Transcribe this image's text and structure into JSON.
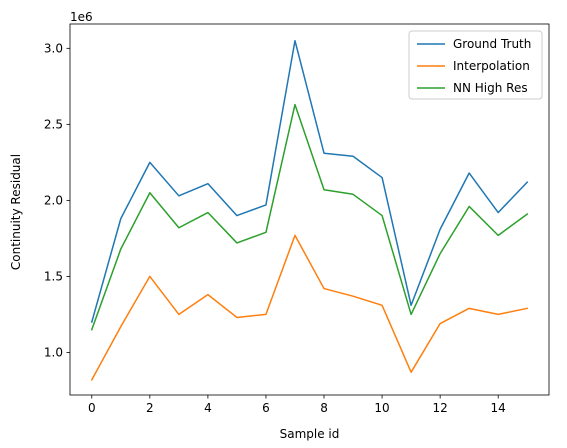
{
  "chart_data": {
    "type": "line",
    "title": "",
    "xlabel": "Sample id",
    "ylabel": "Continuity Residual",
    "y_offset_label": "1e6",
    "x": [
      0,
      1,
      2,
      3,
      4,
      5,
      6,
      7,
      8,
      9,
      10,
      11,
      12,
      13,
      14,
      15
    ],
    "xlim": [
      -0.75,
      15.75
    ],
    "ylim": [
      0.72,
      3.16
    ],
    "x_ticks": [
      0,
      2,
      4,
      6,
      8,
      10,
      12,
      14
    ],
    "y_ticks": [
      1.0,
      1.5,
      2.0,
      2.5,
      3.0
    ],
    "grid": false,
    "legend_position": "top-right",
    "series": [
      {
        "name": "Ground Truth",
        "color": "#1f77b4",
        "values": [
          1.2,
          1.88,
          2.25,
          2.03,
          2.11,
          1.9,
          1.97,
          3.05,
          2.31,
          2.29,
          2.15,
          1.31,
          1.81,
          2.18,
          1.92,
          2.12
        ]
      },
      {
        "name": "Interpolation",
        "color": "#ff7f0e",
        "values": [
          0.82,
          1.17,
          1.5,
          1.25,
          1.38,
          1.23,
          1.25,
          1.77,
          1.42,
          1.37,
          1.31,
          0.87,
          1.19,
          1.29,
          1.25,
          1.29
        ]
      },
      {
        "name": "NN High Res",
        "color": "#2ca02c",
        "values": [
          1.15,
          1.68,
          2.05,
          1.82,
          1.92,
          1.72,
          1.79,
          2.63,
          2.07,
          2.04,
          1.9,
          1.25,
          1.65,
          1.96,
          1.77,
          1.91
        ]
      }
    ]
  }
}
